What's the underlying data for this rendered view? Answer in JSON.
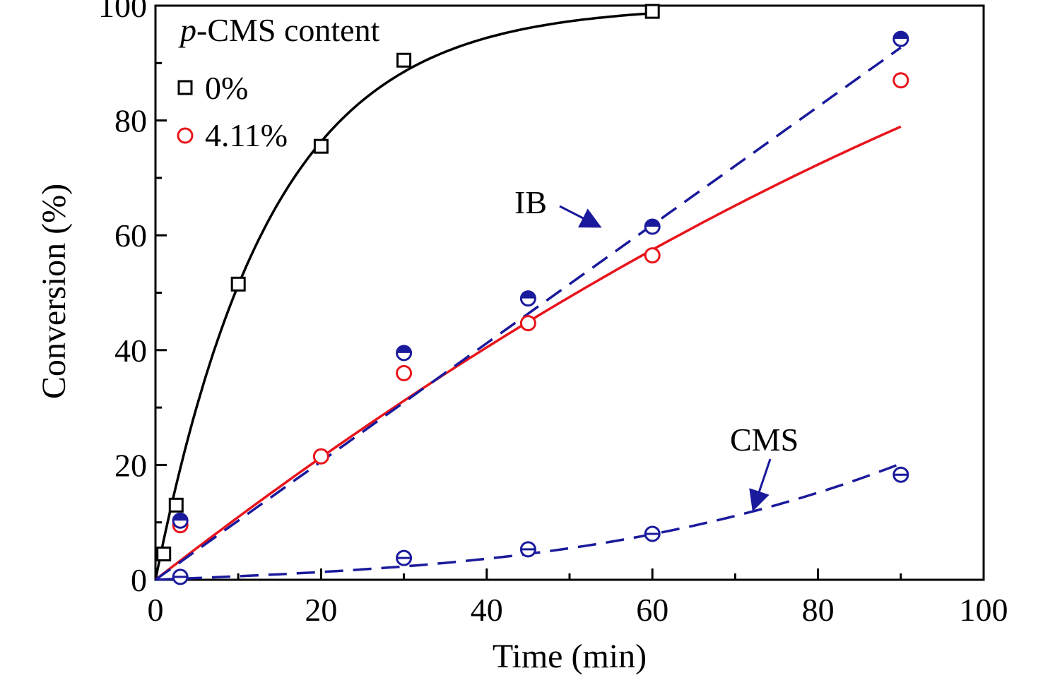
{
  "chart_data": {
    "type": "scatter",
    "xlabel": "Time (min)",
    "ylabel": "Conversion (%)",
    "xlim": [
      0,
      100
    ],
    "ylim": [
      0,
      100
    ],
    "xticks": [
      "0",
      "20",
      "40",
      "60",
      "80",
      "100"
    ],
    "yticks": [
      "0",
      "20",
      "40",
      "60",
      "80",
      "100"
    ],
    "grid": false,
    "legend": {
      "title_prefix": "p",
      "title_rest": "-CMS content",
      "placement": "top-left",
      "entries": [
        "0%",
        "4.11%"
      ]
    },
    "series": [
      {
        "name": "0%",
        "marker": "square",
        "color": "#000000",
        "points": [
          [
            1,
            4.5
          ],
          [
            2.5,
            13
          ],
          [
            10,
            51.5
          ],
          [
            20,
            75.5
          ],
          [
            30,
            90.5
          ],
          [
            60,
            99
          ]
        ],
        "fit": "solid"
      },
      {
        "name": "4.11%",
        "marker": "open-circle",
        "color": "#e8141b",
        "points": [
          [
            3,
            9.5
          ],
          [
            20,
            21.5
          ],
          [
            30,
            36
          ],
          [
            45,
            44.7
          ],
          [
            60,
            56.5
          ],
          [
            90,
            87
          ]
        ],
        "fit": "solid"
      },
      {
        "name": "IB",
        "marker": "half-filled-circle",
        "color": "#1a1a9c",
        "points": [
          [
            3,
            10.3
          ],
          [
            30,
            39.5
          ],
          [
            45,
            49
          ],
          [
            60,
            61.5
          ],
          [
            90,
            94.2
          ]
        ],
        "fit": "dashed"
      },
      {
        "name": "CMS",
        "marker": "circle-bar",
        "color": "#1a1a9c",
        "points": [
          [
            3,
            0.5
          ],
          [
            30,
            3.8
          ],
          [
            45,
            5.3
          ],
          [
            60,
            8
          ],
          [
            90,
            18.3
          ]
        ],
        "fit": "dashed"
      }
    ],
    "annotations": [
      {
        "text": "IB",
        "arrow_to": [
          54,
          61
        ]
      },
      {
        "text": "CMS",
        "arrow_to": [
          72,
          11.5
        ]
      }
    ]
  }
}
